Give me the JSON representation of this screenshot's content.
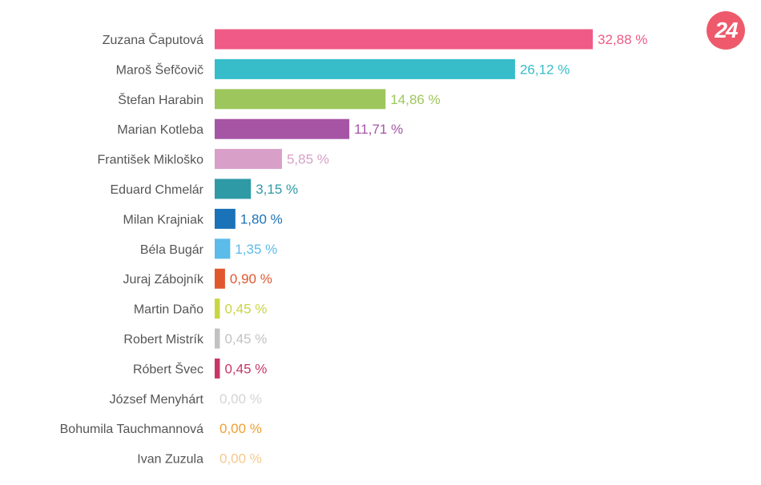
{
  "logo": {
    "text": "24",
    "color": "#ee5a6b"
  },
  "chart_data": {
    "type": "bar",
    "orientation": "horizontal",
    "grid": false,
    "xlim": [
      0,
      32.88
    ],
    "categories": [
      "Zuzana Čaputová",
      "Maroš Šefčovič",
      "Štefan Harabin",
      "Marian Kotleba",
      "František Mikloško",
      "Eduard Chmelár",
      "Milan Krajniak",
      "Béla Bugár",
      "Juraj Zábojník",
      "Martin Daňo",
      "Robert Mistrík",
      "Róbert Švec",
      "József Menyhárt",
      "Bohumila Tauchmannová",
      "Ivan Zuzula"
    ],
    "values": [
      32.88,
      26.12,
      14.86,
      11.71,
      5.85,
      3.15,
      1.8,
      1.35,
      0.9,
      0.45,
      0.45,
      0.45,
      0.0,
      0.0,
      0.0
    ],
    "value_labels": [
      "32,88 %",
      "26,12 %",
      "14,86 %",
      "11,71 %",
      "5,85 %",
      "3,15 %",
      "1,80 %",
      "1,35 %",
      "0,90 %",
      "0,45 %",
      "0,45 %",
      "0,45 %",
      "0,00 %",
      "0,00 %",
      "0,00 %"
    ],
    "colors": [
      "#ef5a86",
      "#36bdc9",
      "#9dc75c",
      "#a655a5",
      "#d8a0c8",
      "#2e9aa6",
      "#1a72b8",
      "#5bbbe9",
      "#e0572e",
      "#c8d642",
      "#c2c2c2",
      "#c73766",
      "#d4d4d4",
      "#f0a030",
      "#f5c98a"
    ]
  }
}
